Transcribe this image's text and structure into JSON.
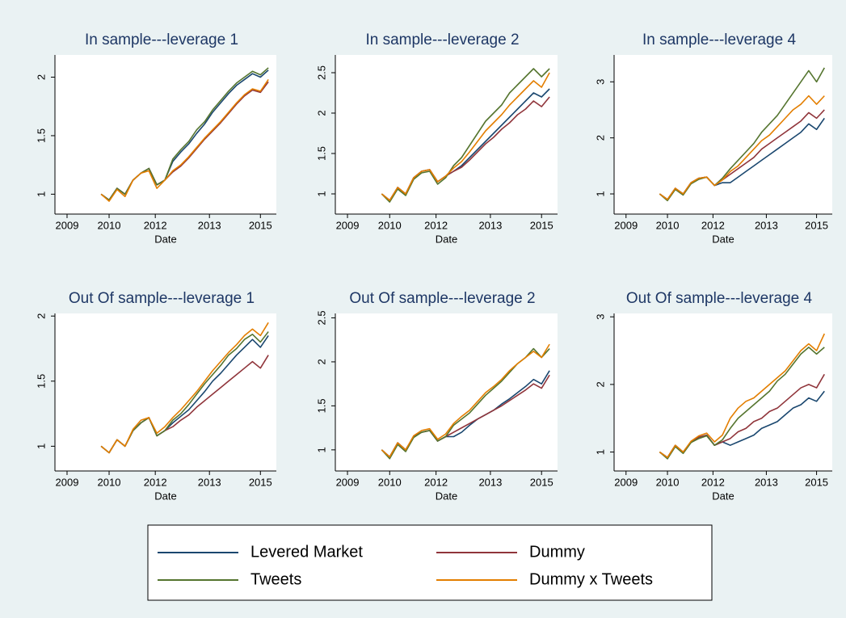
{
  "chart_data": [
    {
      "type": "line",
      "title": "In sample---leverage 1",
      "x_label": "Date",
      "x": [
        2009.75,
        2010,
        2010.25,
        2010.5,
        2010.75,
        2011,
        2011.25,
        2011.5,
        2011.75,
        2012,
        2012.25,
        2012.5,
        2012.75,
        2013,
        2013.25,
        2013.5,
        2013.75,
        2014,
        2014.25,
        2014.5,
        2014.75,
        2015
      ],
      "xlim": [
        2008.3,
        2015.25
      ],
      "xticks": [
        {
          "value": 2008.68,
          "label": "2009"
        },
        {
          "value": 2010.0,
          "label": "2010"
        },
        {
          "value": 2011.45,
          "label": "2012"
        },
        {
          "value": 2013.15,
          "label": "2013"
        },
        {
          "value": 2014.75,
          "label": "2015"
        }
      ],
      "ylim": [
        0.83,
        2.19
      ],
      "yticks": [
        1,
        1.5,
        2
      ],
      "series": [
        {
          "name": "Levered Market",
          "color": "#1a476f",
          "values": [
            1.0,
            0.95,
            1.05,
            1.0,
            1.12,
            1.18,
            1.22,
            1.08,
            1.12,
            1.28,
            1.36,
            1.43,
            1.52,
            1.6,
            1.7,
            1.78,
            1.86,
            1.93,
            1.98,
            2.03,
            2.0,
            2.06
          ]
        },
        {
          "name": "Dummy",
          "color": "#90353b",
          "values": [
            1.0,
            0.95,
            1.05,
            1.0,
            1.12,
            1.18,
            1.22,
            1.08,
            1.12,
            1.19,
            1.24,
            1.31,
            1.39,
            1.47,
            1.54,
            1.61,
            1.69,
            1.77,
            1.84,
            1.89,
            1.87,
            1.96
          ]
        },
        {
          "name": "Tweets",
          "color": "#55752f",
          "values": [
            1.0,
            0.95,
            1.05,
            1.0,
            1.12,
            1.18,
            1.22,
            1.08,
            1.12,
            1.3,
            1.38,
            1.45,
            1.55,
            1.62,
            1.72,
            1.8,
            1.88,
            1.95,
            2.0,
            2.05,
            2.02,
            2.08
          ]
        },
        {
          "name": "Dummy x Tweets",
          "color": "#e37e00",
          "values": [
            1.0,
            0.94,
            1.04,
            0.98,
            1.12,
            1.18,
            1.2,
            1.05,
            1.12,
            1.2,
            1.25,
            1.32,
            1.4,
            1.48,
            1.55,
            1.62,
            1.7,
            1.78,
            1.85,
            1.9,
            1.88,
            1.98
          ]
        }
      ]
    },
    {
      "type": "line",
      "title": "In sample---leverage 2",
      "x_label": "Date",
      "x": [
        2009.75,
        2010,
        2010.25,
        2010.5,
        2010.75,
        2011,
        2011.25,
        2011.5,
        2011.75,
        2012,
        2012.25,
        2012.5,
        2012.75,
        2013,
        2013.25,
        2013.5,
        2013.75,
        2014,
        2014.25,
        2014.5,
        2014.75,
        2015
      ],
      "xlim": [
        2008.3,
        2015.25
      ],
      "xticks": [
        {
          "value": 2008.68,
          "label": "2009"
        },
        {
          "value": 2010.0,
          "label": "2010"
        },
        {
          "value": 2011.45,
          "label": "2012"
        },
        {
          "value": 2013.15,
          "label": "2013"
        },
        {
          "value": 2014.75,
          "label": "2015"
        }
      ],
      "ylim": [
        0.75,
        2.72
      ],
      "yticks": [
        1,
        1.5,
        2,
        2.5
      ],
      "series": [
        {
          "name": "Levered Market",
          "color": "#1a476f",
          "values": [
            1.0,
            0.92,
            1.08,
            1.0,
            1.2,
            1.28,
            1.3,
            1.15,
            1.22,
            1.28,
            1.35,
            1.45,
            1.55,
            1.65,
            1.75,
            1.85,
            1.95,
            2.05,
            2.15,
            2.25,
            2.2,
            2.3
          ]
        },
        {
          "name": "Dummy",
          "color": "#90353b",
          "values": [
            1.0,
            0.92,
            1.08,
            1.0,
            1.2,
            1.28,
            1.3,
            1.15,
            1.22,
            1.28,
            1.33,
            1.42,
            1.52,
            1.62,
            1.7,
            1.8,
            1.88,
            1.98,
            2.05,
            2.15,
            2.08,
            2.2
          ]
        },
        {
          "name": "Tweets",
          "color": "#55752f",
          "values": [
            1.0,
            0.9,
            1.06,
            0.98,
            1.18,
            1.26,
            1.28,
            1.12,
            1.2,
            1.35,
            1.45,
            1.6,
            1.75,
            1.9,
            2.0,
            2.1,
            2.25,
            2.35,
            2.45,
            2.55,
            2.45,
            2.55
          ]
        },
        {
          "name": "Dummy x Tweets",
          "color": "#e37e00",
          "values": [
            1.0,
            0.92,
            1.08,
            1.0,
            1.2,
            1.28,
            1.3,
            1.15,
            1.22,
            1.32,
            1.4,
            1.52,
            1.65,
            1.78,
            1.88,
            1.98,
            2.1,
            2.2,
            2.3,
            2.4,
            2.32,
            2.5
          ]
        }
      ]
    },
    {
      "type": "line",
      "title": "In sample---leverage 4",
      "x_label": "Date",
      "x": [
        2009.75,
        2010,
        2010.25,
        2010.5,
        2010.75,
        2011,
        2011.25,
        2011.5,
        2011.75,
        2012,
        2012.25,
        2012.5,
        2012.75,
        2013,
        2013.25,
        2013.5,
        2013.75,
        2014,
        2014.25,
        2014.5,
        2014.75,
        2015
      ],
      "xlim": [
        2008.3,
        2015.25
      ],
      "xticks": [
        {
          "value": 2008.68,
          "label": "2009"
        },
        {
          "value": 2010.0,
          "label": "2010"
        },
        {
          "value": 2011.45,
          "label": "2012"
        },
        {
          "value": 2013.15,
          "label": "2013"
        },
        {
          "value": 2014.75,
          "label": "2015"
        }
      ],
      "ylim": [
        0.64,
        3.48
      ],
      "yticks": [
        1,
        2,
        3
      ],
      "series": [
        {
          "name": "Levered Market",
          "color": "#1a476f",
          "values": [
            1.0,
            0.9,
            1.1,
            1.0,
            1.2,
            1.28,
            1.3,
            1.15,
            1.2,
            1.2,
            1.3,
            1.4,
            1.5,
            1.6,
            1.7,
            1.8,
            1.9,
            2.0,
            2.1,
            2.25,
            2.15,
            2.35
          ]
        },
        {
          "name": "Dummy",
          "color": "#90353b",
          "values": [
            1.0,
            0.9,
            1.1,
            1.0,
            1.2,
            1.28,
            1.3,
            1.15,
            1.25,
            1.35,
            1.45,
            1.55,
            1.65,
            1.8,
            1.9,
            2.0,
            2.1,
            2.2,
            2.3,
            2.45,
            2.35,
            2.5
          ]
        },
        {
          "name": "Tweets",
          "color": "#55752f",
          "values": [
            1.0,
            0.88,
            1.08,
            0.98,
            1.18,
            1.26,
            1.3,
            1.15,
            1.28,
            1.45,
            1.6,
            1.75,
            1.9,
            2.1,
            2.25,
            2.4,
            2.6,
            2.8,
            3.0,
            3.2,
            3.0,
            3.25
          ]
        },
        {
          "name": "Dummy x Tweets",
          "color": "#e37e00",
          "values": [
            1.0,
            0.9,
            1.1,
            1.0,
            1.2,
            1.28,
            1.3,
            1.15,
            1.25,
            1.4,
            1.5,
            1.65,
            1.8,
            1.95,
            2.05,
            2.2,
            2.35,
            2.5,
            2.6,
            2.75,
            2.6,
            2.75
          ]
        }
      ]
    },
    {
      "type": "line",
      "title": "Out Of sample---leverage 1",
      "x_label": "Date",
      "x": [
        2009.75,
        2010,
        2010.25,
        2010.5,
        2010.75,
        2011,
        2011.25,
        2011.5,
        2011.75,
        2012,
        2012.25,
        2012.5,
        2012.75,
        2013,
        2013.25,
        2013.5,
        2013.75,
        2014,
        2014.25,
        2014.5,
        2014.75,
        2015
      ],
      "xlim": [
        2008.3,
        2015.25
      ],
      "xticks": [
        {
          "value": 2008.68,
          "label": "2009"
        },
        {
          "value": 2010.0,
          "label": "2010"
        },
        {
          "value": 2011.45,
          "label": "2012"
        },
        {
          "value": 2013.15,
          "label": "2013"
        },
        {
          "value": 2014.75,
          "label": "2015"
        }
      ],
      "ylim": [
        0.81,
        2.02
      ],
      "yticks": [
        1,
        1.5,
        2
      ],
      "series": [
        {
          "name": "Levered Market",
          "color": "#1a476f",
          "values": [
            1.0,
            0.95,
            1.05,
            1.0,
            1.12,
            1.18,
            1.22,
            1.08,
            1.12,
            1.18,
            1.23,
            1.28,
            1.35,
            1.42,
            1.5,
            1.56,
            1.63,
            1.7,
            1.76,
            1.82,
            1.76,
            1.85
          ]
        },
        {
          "name": "Dummy",
          "color": "#90353b",
          "values": [
            1.0,
            0.95,
            1.05,
            1.0,
            1.12,
            1.18,
            1.22,
            1.08,
            1.12,
            1.15,
            1.2,
            1.24,
            1.3,
            1.35,
            1.4,
            1.45,
            1.5,
            1.55,
            1.6,
            1.65,
            1.6,
            1.7
          ]
        },
        {
          "name": "Tweets",
          "color": "#55752f",
          "values": [
            1.0,
            0.95,
            1.05,
            1.0,
            1.12,
            1.18,
            1.22,
            1.08,
            1.12,
            1.2,
            1.25,
            1.32,
            1.4,
            1.48,
            1.55,
            1.62,
            1.7,
            1.75,
            1.82,
            1.86,
            1.8,
            1.88
          ]
        },
        {
          "name": "Dummy x Tweets",
          "color": "#e37e00",
          "values": [
            1.0,
            0.95,
            1.05,
            1.0,
            1.13,
            1.2,
            1.22,
            1.1,
            1.15,
            1.22,
            1.28,
            1.35,
            1.42,
            1.5,
            1.58,
            1.65,
            1.72,
            1.78,
            1.85,
            1.9,
            1.85,
            1.95
          ]
        }
      ]
    },
    {
      "type": "line",
      "title": "Out Of sample---leverage 2",
      "x_label": "Date",
      "x": [
        2009.75,
        2010,
        2010.25,
        2010.5,
        2010.75,
        2011,
        2011.25,
        2011.5,
        2011.75,
        2012,
        2012.25,
        2012.5,
        2012.75,
        2013,
        2013.25,
        2013.5,
        2013.75,
        2014,
        2014.25,
        2014.5,
        2014.75,
        2015
      ],
      "xlim": [
        2008.3,
        2015.25
      ],
      "xticks": [
        {
          "value": 2008.68,
          "label": "2009"
        },
        {
          "value": 2010.0,
          "label": "2010"
        },
        {
          "value": 2011.45,
          "label": "2012"
        },
        {
          "value": 2013.15,
          "label": "2013"
        },
        {
          "value": 2014.75,
          "label": "2015"
        }
      ],
      "ylim": [
        0.76,
        2.55
      ],
      "yticks": [
        1,
        1.5,
        2,
        2.5
      ],
      "series": [
        {
          "name": "Levered Market",
          "color": "#1a476f",
          "values": [
            1.0,
            0.92,
            1.08,
            1.0,
            1.15,
            1.2,
            1.22,
            1.1,
            1.15,
            1.15,
            1.2,
            1.28,
            1.35,
            1.4,
            1.45,
            1.52,
            1.58,
            1.65,
            1.72,
            1.8,
            1.75,
            1.9
          ]
        },
        {
          "name": "Dummy",
          "color": "#90353b",
          "values": [
            1.0,
            0.92,
            1.08,
            1.0,
            1.15,
            1.2,
            1.22,
            1.1,
            1.15,
            1.2,
            1.25,
            1.3,
            1.35,
            1.4,
            1.45,
            1.5,
            1.56,
            1.62,
            1.68,
            1.75,
            1.7,
            1.85
          ]
        },
        {
          "name": "Tweets",
          "color": "#55752f",
          "values": [
            1.0,
            0.9,
            1.06,
            0.98,
            1.14,
            1.2,
            1.22,
            1.1,
            1.15,
            1.28,
            1.35,
            1.42,
            1.52,
            1.62,
            1.7,
            1.78,
            1.88,
            1.98,
            2.05,
            2.15,
            2.05,
            2.15
          ]
        },
        {
          "name": "Dummy x Tweets",
          "color": "#e37e00",
          "values": [
            1.0,
            0.92,
            1.08,
            1.0,
            1.16,
            1.22,
            1.24,
            1.12,
            1.18,
            1.3,
            1.38,
            1.45,
            1.55,
            1.65,
            1.72,
            1.8,
            1.9,
            1.98,
            2.05,
            2.12,
            2.05,
            2.2
          ]
        }
      ]
    },
    {
      "type": "line",
      "title": "Out Of sample---leverage 4",
      "x_label": "Date",
      "x": [
        2009.75,
        2010,
        2010.25,
        2010.5,
        2010.75,
        2011,
        2011.25,
        2011.5,
        2011.75,
        2012,
        2012.25,
        2012.5,
        2012.75,
        2013,
        2013.25,
        2013.5,
        2013.75,
        2014,
        2014.25,
        2014.5,
        2014.75,
        2015
      ],
      "xlim": [
        2008.3,
        2015.25
      ],
      "xticks": [
        {
          "value": 2008.68,
          "label": "2009"
        },
        {
          "value": 2010.0,
          "label": "2010"
        },
        {
          "value": 2011.45,
          "label": "2012"
        },
        {
          "value": 2013.15,
          "label": "2013"
        },
        {
          "value": 2014.75,
          "label": "2015"
        }
      ],
      "ylim": [
        0.72,
        3.05
      ],
      "yticks": [
        1,
        2,
        3
      ],
      "series": [
        {
          "name": "Levered Market",
          "color": "#1a476f",
          "values": [
            1.0,
            0.92,
            1.1,
            1.0,
            1.15,
            1.22,
            1.25,
            1.1,
            1.15,
            1.1,
            1.15,
            1.2,
            1.25,
            1.35,
            1.4,
            1.45,
            1.55,
            1.65,
            1.7,
            1.8,
            1.75,
            1.9
          ]
        },
        {
          "name": "Dummy",
          "color": "#90353b",
          "values": [
            1.0,
            0.92,
            1.1,
            1.0,
            1.15,
            1.22,
            1.25,
            1.1,
            1.15,
            1.2,
            1.3,
            1.35,
            1.45,
            1.5,
            1.6,
            1.65,
            1.75,
            1.85,
            1.95,
            2.0,
            1.95,
            2.15
          ]
        },
        {
          "name": "Tweets",
          "color": "#55752f",
          "values": [
            1.0,
            0.9,
            1.08,
            0.98,
            1.14,
            1.2,
            1.24,
            1.1,
            1.18,
            1.35,
            1.5,
            1.6,
            1.7,
            1.8,
            1.9,
            2.05,
            2.15,
            2.3,
            2.45,
            2.55,
            2.45,
            2.55
          ]
        },
        {
          "name": "Dummy x Tweets",
          "color": "#e37e00",
          "values": [
            1.0,
            0.92,
            1.1,
            1.0,
            1.16,
            1.24,
            1.28,
            1.15,
            1.25,
            1.5,
            1.65,
            1.75,
            1.8,
            1.9,
            2.0,
            2.1,
            2.2,
            2.35,
            2.5,
            2.6,
            2.5,
            2.75
          ]
        }
      ]
    }
  ]
}
